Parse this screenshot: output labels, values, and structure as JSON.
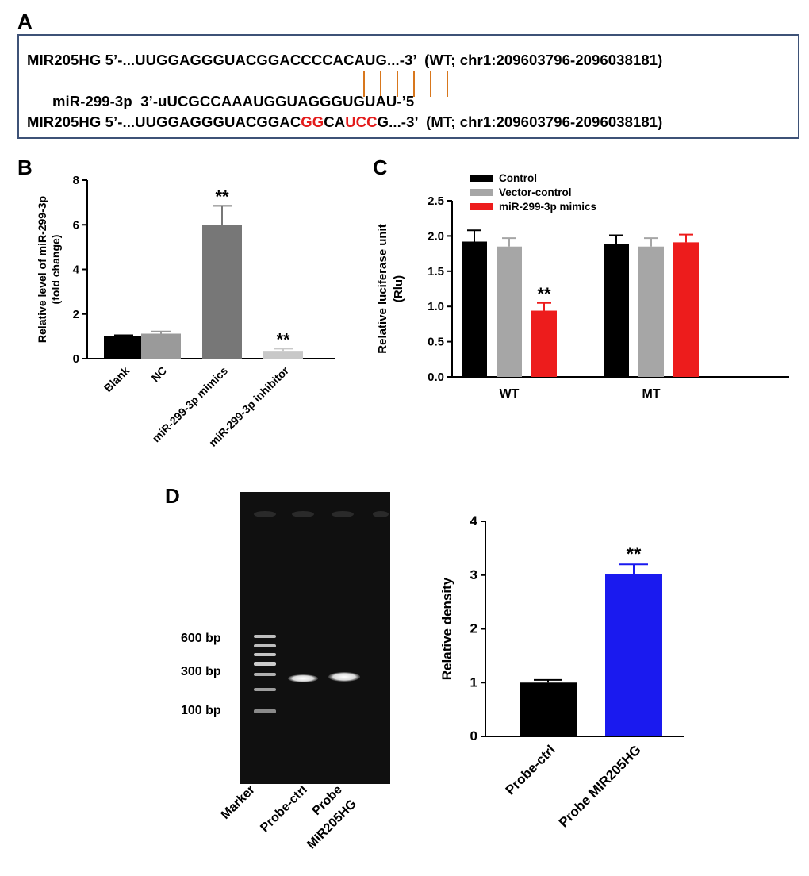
{
  "panels": {
    "a": "A",
    "b": "B",
    "c": "C",
    "d": "D"
  },
  "sequences": {
    "wt_prefix": "MIR205HG 5’-...UUGGAGGGUACGGACCCCACAUG...-3’  (WT; chr1:209603796-2096038181)",
    "mirna": "miR-299-3p  3’-uUCGCCAAAUGGUAGGGUGUAU-’5",
    "mt_a": "MIR205HG 5’-...UUGGAGGGUACGGAC",
    "mt_b": "GG",
    "mt_c": "CA",
    "mt_d": "UCC",
    "mt_e": "G...-3’  (MT; chr1:209603796-2096038181)",
    "pairing_color": "#d8771d",
    "mutation_color": "#e31b1b"
  },
  "chart_data": [
    {
      "panel": "B",
      "type": "bar",
      "categories": [
        "Blank",
        "NC",
        "miR-299-3p mimics",
        "miR-299-3p inhibitor"
      ],
      "values": [
        1.0,
        1.12,
        6.0,
        0.35
      ],
      "errors": [
        0.05,
        0.1,
        0.85,
        0.1
      ],
      "significance": [
        "",
        "",
        "**",
        "**"
      ],
      "colors": [
        "#000000",
        "#9a9a9a",
        "#777777",
        "#c8c8c8"
      ],
      "ylabel_line1": "Relative level of miR-299-3p",
      "ylabel_line2": "(fold change)",
      "ylim": [
        0,
        8
      ],
      "yticks": [
        "0",
        "2",
        "4",
        "6",
        "8"
      ]
    },
    {
      "panel": "C",
      "type": "bar",
      "categories": [
        "WT",
        "MT"
      ],
      "series": [
        {
          "name": "Control",
          "color": "#000000",
          "values": [
            1.92,
            1.89
          ],
          "errors": [
            0.16,
            0.12
          ],
          "significance": [
            "",
            ""
          ]
        },
        {
          "name": "Vector-control",
          "color": "#a6a6a6",
          "values": [
            1.85,
            1.85
          ],
          "errors": [
            0.12,
            0.12
          ],
          "significance": [
            "",
            ""
          ]
        },
        {
          "name": "miR-299-3p mimics",
          "color": "#ed1c1c",
          "values": [
            0.94,
            1.91
          ],
          "errors": [
            0.11,
            0.11
          ],
          "significance": [
            "**",
            ""
          ]
        }
      ],
      "ylabel_line1": "Relative luciferase unit",
      "ylabel_line2": "(Rlu)",
      "ylim": [
        0,
        2.5
      ],
      "yticks": [
        "0.0",
        "0.5",
        "1.0",
        "1.5",
        "2.0",
        "2.5"
      ],
      "legend_position": "top-left"
    },
    {
      "panel": "D",
      "type": "bar",
      "categories": [
        "Probe-ctrl",
        "Probe MIR205HG"
      ],
      "values": [
        1.0,
        3.02
      ],
      "errors": [
        0.05,
        0.18
      ],
      "significance": [
        "",
        "**"
      ],
      "colors": [
        "#000000",
        "#1a1aef"
      ],
      "ylabel": "Relative density",
      "ylim": [
        0,
        4
      ],
      "yticks": [
        "0",
        "1",
        "2",
        "3",
        "4"
      ]
    }
  ],
  "gel": {
    "markers": [
      "600 bp",
      "300 bp",
      "100 bp"
    ],
    "lanes": [
      "Marker",
      "Probe-ctrl",
      "Probe",
      "MIR205HG"
    ]
  }
}
